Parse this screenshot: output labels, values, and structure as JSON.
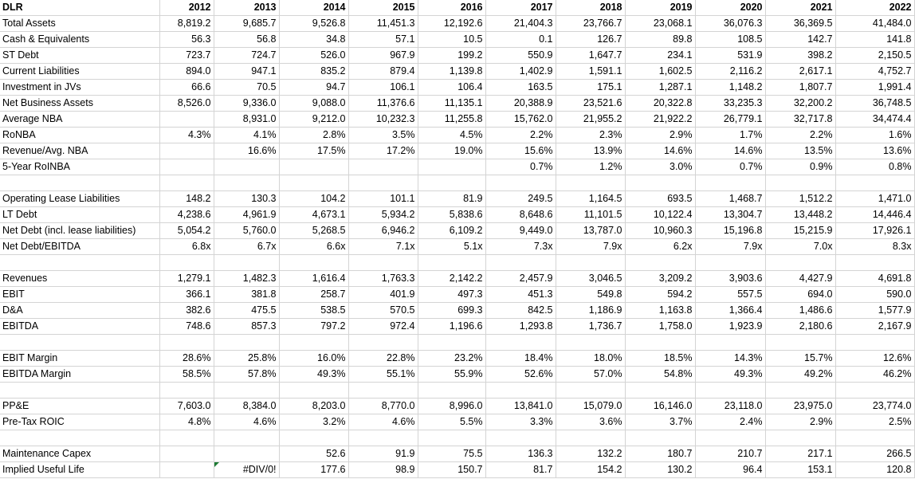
{
  "sheet": {
    "header": {
      "label": "DLR",
      "years": [
        "2012",
        "2013",
        "2014",
        "2015",
        "2016",
        "2017",
        "2018",
        "2019",
        "2020",
        "2021",
        "2022"
      ]
    },
    "rows": [
      {
        "label": "Total Assets",
        "values": [
          "8,819.2",
          "9,685.7",
          "9,526.8",
          "11,451.3",
          "12,192.6",
          "21,404.3",
          "23,766.7",
          "23,068.1",
          "36,076.3",
          "36,369.5",
          "41,484.0"
        ]
      },
      {
        "label": "Cash & Equivalents",
        "values": [
          "56.3",
          "56.8",
          "34.8",
          "57.1",
          "10.5",
          "0.1",
          "126.7",
          "89.8",
          "108.5",
          "142.7",
          "141.8"
        ]
      },
      {
        "label": "ST Debt",
        "values": [
          "723.7",
          "724.7",
          "526.0",
          "967.9",
          "199.2",
          "550.9",
          "1,647.7",
          "234.1",
          "531.9",
          "398.2",
          "2,150.5"
        ]
      },
      {
        "label": "Current Liabilities",
        "values": [
          "894.0",
          "947.1",
          "835.2",
          "879.4",
          "1,139.8",
          "1,402.9",
          "1,591.1",
          "1,602.5",
          "2,116.2",
          "2,617.1",
          "4,752.7"
        ]
      },
      {
        "label": "Investment in JVs",
        "values": [
          "66.6",
          "70.5",
          "94.7",
          "106.1",
          "106.4",
          "163.5",
          "175.1",
          "1,287.1",
          "1,148.2",
          "1,807.7",
          "1,991.4"
        ]
      },
      {
        "label": "Net Business Assets",
        "values": [
          "8,526.0",
          "9,336.0",
          "9,088.0",
          "11,376.6",
          "11,135.1",
          "20,388.9",
          "23,521.6",
          "20,322.8",
          "33,235.3",
          "32,200.2",
          "36,748.5"
        ]
      },
      {
        "label": "Average NBA",
        "values": [
          "",
          "8,931.0",
          "9,212.0",
          "10,232.3",
          "11,255.8",
          "15,762.0",
          "21,955.2",
          "21,922.2",
          "26,779.1",
          "32,717.8",
          "34,474.4"
        ]
      },
      {
        "label": "RoNBA",
        "values": [
          "4.3%",
          "4.1%",
          "2.8%",
          "3.5%",
          "4.5%",
          "2.2%",
          "2.3%",
          "2.9%",
          "1.7%",
          "2.2%",
          "1.6%"
        ]
      },
      {
        "label": "Revenue/Avg. NBA",
        "values": [
          "",
          "16.6%",
          "17.5%",
          "17.2%",
          "19.0%",
          "15.6%",
          "13.9%",
          "14.6%",
          "14.6%",
          "13.5%",
          "13.6%"
        ]
      },
      {
        "label": "5-Year RoINBA",
        "values": [
          "",
          "",
          "",
          "",
          "",
          "0.7%",
          "1.2%",
          "3.0%",
          "0.7%",
          "0.9%",
          "0.8%"
        ]
      },
      {
        "label": "",
        "values": [
          "",
          "",
          "",
          "",
          "",
          "",
          "",
          "",
          "",
          "",
          ""
        ]
      },
      {
        "label": "Operating Lease Liabilities",
        "values": [
          "148.2",
          "130.3",
          "104.2",
          "101.1",
          "81.9",
          "249.5",
          "1,164.5",
          "693.5",
          "1,468.7",
          "1,512.2",
          "1,471.0"
        ]
      },
      {
        "label": "LT Debt",
        "values": [
          "4,238.6",
          "4,961.9",
          "4,673.1",
          "5,934.2",
          "5,838.6",
          "8,648.6",
          "11,101.5",
          "10,122.4",
          "13,304.7",
          "13,448.2",
          "14,446.4"
        ]
      },
      {
        "label": "Net Debt (incl. lease liabilities)",
        "values": [
          "5,054.2",
          "5,760.0",
          "5,268.5",
          "6,946.2",
          "6,109.2",
          "9,449.0",
          "13,787.0",
          "10,960.3",
          "15,196.8",
          "15,215.9",
          "17,926.1"
        ]
      },
      {
        "label": "Net Debt/EBITDA",
        "values": [
          "6.8x",
          "6.7x",
          "6.6x",
          "7.1x",
          "5.1x",
          "7.3x",
          "7.9x",
          "6.2x",
          "7.9x",
          "7.0x",
          "8.3x"
        ]
      },
      {
        "label": "",
        "values": [
          "",
          "",
          "",
          "",
          "",
          "",
          "",
          "",
          "",
          "",
          ""
        ]
      },
      {
        "label": "Revenues",
        "values": [
          "1,279.1",
          "1,482.3",
          "1,616.4",
          "1,763.3",
          "2,142.2",
          "2,457.9",
          "3,046.5",
          "3,209.2",
          "3,903.6",
          "4,427.9",
          "4,691.8"
        ]
      },
      {
        "label": "EBIT",
        "values": [
          "366.1",
          "381.8",
          "258.7",
          "401.9",
          "497.3",
          "451.3",
          "549.8",
          "594.2",
          "557.5",
          "694.0",
          "590.0"
        ]
      },
      {
        "label": "D&A",
        "values": [
          "382.6",
          "475.5",
          "538.5",
          "570.5",
          "699.3",
          "842.5",
          "1,186.9",
          "1,163.8",
          "1,366.4",
          "1,486.6",
          "1,577.9"
        ]
      },
      {
        "label": "EBITDA",
        "values": [
          "748.6",
          "857.3",
          "797.2",
          "972.4",
          "1,196.6",
          "1,293.8",
          "1,736.7",
          "1,758.0",
          "1,923.9",
          "2,180.6",
          "2,167.9"
        ]
      },
      {
        "label": "",
        "values": [
          "",
          "",
          "",
          "",
          "",
          "",
          "",
          "",
          "",
          "",
          ""
        ]
      },
      {
        "label": "EBIT Margin",
        "values": [
          "28.6%",
          "25.8%",
          "16.0%",
          "22.8%",
          "23.2%",
          "18.4%",
          "18.0%",
          "18.5%",
          "14.3%",
          "15.7%",
          "12.6%"
        ]
      },
      {
        "label": "EBITDA Margin",
        "values": [
          "58.5%",
          "57.8%",
          "49.3%",
          "55.1%",
          "55.9%",
          "52.6%",
          "57.0%",
          "54.8%",
          "49.3%",
          "49.2%",
          "46.2%"
        ]
      },
      {
        "label": "",
        "values": [
          "",
          "",
          "",
          "",
          "",
          "",
          "",
          "",
          "",
          "",
          ""
        ]
      },
      {
        "label": "PP&E",
        "values": [
          "7,603.0",
          "8,384.0",
          "8,203.0",
          "8,770.0",
          "8,996.0",
          "13,841.0",
          "15,079.0",
          "16,146.0",
          "23,118.0",
          "23,975.0",
          "23,774.0"
        ]
      },
      {
        "label": "Pre-Tax ROIC",
        "values": [
          "4.8%",
          "4.6%",
          "3.2%",
          "4.6%",
          "5.5%",
          "3.3%",
          "3.6%",
          "3.7%",
          "2.4%",
          "2.9%",
          "2.5%"
        ]
      },
      {
        "label": "",
        "values": [
          "",
          "",
          "",
          "",
          "",
          "",
          "",
          "",
          "",
          "",
          ""
        ]
      },
      {
        "label": "Maintenance Capex",
        "values": [
          "",
          "",
          "52.6",
          "91.9",
          "75.5",
          "136.3",
          "132.2",
          "180.7",
          "210.7",
          "217.1",
          "266.5"
        ]
      },
      {
        "label": "Implied Useful Life",
        "values": [
          "",
          "#DIV/0!",
          "177.6",
          "98.9",
          "150.7",
          "81.7",
          "154.2",
          "130.2",
          "96.4",
          "153.1",
          "120.8"
        ]
      }
    ]
  }
}
